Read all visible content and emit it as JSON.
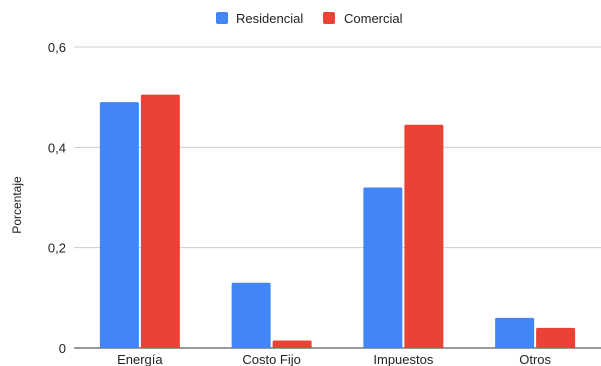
{
  "chart_data": {
    "type": "bar",
    "categories": [
      "Energía",
      "Costo Fijo",
      "Impuestos",
      "Otros"
    ],
    "series": [
      {
        "name": "Residencial",
        "color": "#4285F4",
        "values": [
          0.49,
          0.13,
          0.32,
          0.06
        ]
      },
      {
        "name": "Comercial",
        "color": "#EA4335",
        "values": [
          0.505,
          0.015,
          0.445,
          0.04
        ]
      }
    ],
    "ylabel": "Porcentaje",
    "ylim": [
      0,
      0.6
    ],
    "yticks": [
      {
        "value": 0,
        "label": "0"
      },
      {
        "value": 0.2,
        "label": "0,2"
      },
      {
        "value": 0.4,
        "label": "0,4"
      },
      {
        "value": 0.6,
        "label": "0,6"
      }
    ],
    "legend_position": "top-center",
    "grid": true
  }
}
